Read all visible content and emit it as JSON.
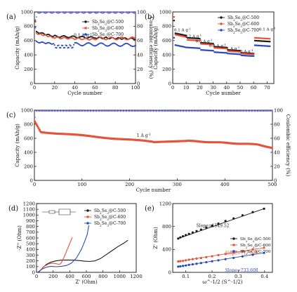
{
  "charts": [
    {
      "panel": "(a)",
      "type": "scatter",
      "xlabel": "Cycle number",
      "ylabel": "Capacity (mAh/g)",
      "y2label": "Coulombic efficiency (%)",
      "xlim": [
        0,
        100
      ],
      "ylim": [
        0,
        1000
      ],
      "y2lim": [
        0,
        100
      ],
      "xticks": [
        0,
        20,
        40,
        60,
        80,
        100
      ],
      "yticks": [
        0,
        200,
        400,
        600,
        800,
        1000
      ],
      "y2ticks": [
        0,
        20,
        40,
        60,
        80,
        100
      ],
      "legend": [
        "Sb2Se3@C-500",
        "Sb2Se3@C-600",
        "Sb2Se3@C-700"
      ],
      "legend_position": "top-right",
      "annotations": [
        {
          "text": "0.1 A g-1",
          "x": 39,
          "y": 650
        }
      ]
    },
    {
      "panel": "(b)",
      "type": "scatter",
      "xlabel": "Cycle number",
      "ylabel": "Capacity (mAh/g)",
      "xlim": [
        0,
        75
      ],
      "ylim": [
        0,
        1000
      ],
      "xticks": [
        0,
        10,
        20,
        30,
        40,
        50,
        60,
        70
      ],
      "yticks": [
        0,
        200,
        400,
        600,
        800,
        1000
      ],
      "legend": [
        "Sb2Se3@C-500",
        "Sb2Se3@C-600",
        "Sb2Se3@C-700"
      ],
      "legend_position": "top-right",
      "annotations": [
        {
          "text": "0.1 A g-1",
          "x": 1,
          "y": 730
        },
        {
          "text": "0.2 A g-1",
          "x": 9,
          "y": 640
        },
        {
          "text": "0.5 A g-1",
          "x": 17,
          "y": 575
        },
        {
          "text": "0.8 A g-1",
          "x": 27,
          "y": 510
        },
        {
          "text": "1 A g-1",
          "x": 40,
          "y": 470
        },
        {
          "text": "2 A g-1",
          "x": 50,
          "y": 430
        },
        {
          "text": "0.1 A g-1",
          "x": 64,
          "y": 740
        }
      ]
    },
    {
      "panel": "(c)",
      "type": "scatter",
      "xlabel": "Cycle number",
      "ylabel": "Capacity (mAh/g)",
      "y2label": "Coulombic efficiency (%)",
      "xlim": [
        0,
        500
      ],
      "ylim": [
        0,
        1000
      ],
      "y2lim": [
        0,
        100
      ],
      "xticks": [
        0,
        100,
        200,
        300,
        400,
        500
      ],
      "yticks": [
        0,
        200,
        400,
        600,
        800,
        1000
      ],
      "y2ticks": [
        0,
        20,
        40,
        60,
        80,
        100
      ],
      "annotations": [
        {
          "text": "1 A g-1",
          "x": 215,
          "y": 620
        }
      ]
    },
    {
      "panel": "(d)",
      "type": "line",
      "xlabel": "Z' (Ohm)",
      "ylabel": "-Z'' (Ohm)",
      "xlim": [
        0,
        1200
      ],
      "ylim": [
        0,
        1200
      ],
      "xticks": [
        0,
        200,
        400,
        600,
        800,
        1000,
        1200
      ],
      "yticks": [
        0,
        100,
        200,
        300,
        400,
        500,
        600,
        700,
        800,
        900,
        1000,
        1100,
        1200
      ],
      "legend": [
        "Sb2Se3@C-500",
        "Sb2Se3@C-600",
        "Sb2Se3@C-700"
      ],
      "legend_position": "top-right",
      "series": [
        {
          "color": "#1a1a1a",
          "x": [
            30,
            50,
            80,
            120,
            170,
            230,
            300,
            380,
            460,
            520,
            580,
            640,
            700,
            770,
            840,
            910,
            980,
            1050,
            1100
          ],
          "y": [
            10,
            40,
            90,
            140,
            175,
            200,
            213,
            215,
            212,
            205,
            195,
            190,
            200,
            240,
            310,
            380,
            450,
            510,
            560
          ]
        },
        {
          "color": "#e5533a",
          "x": [
            30,
            60,
            100,
            150,
            200,
            240,
            270,
            290,
            310,
            330,
            350,
            370,
            390,
            410,
            430
          ],
          "y": [
            10,
            60,
            110,
            150,
            160,
            150,
            140,
            150,
            200,
            260,
            330,
            400,
            470,
            540,
            610
          ]
        },
        {
          "color": "#2b49b8",
          "x": [
            20,
            40,
            70,
            110,
            150,
            180,
            210,
            240,
            300,
            360,
            420,
            480,
            540,
            580,
            610,
            630
          ],
          "y": [
            5,
            30,
            60,
            85,
            100,
            105,
            100,
            98,
            105,
            120,
            160,
            250,
            400,
            540,
            660,
            820
          ]
        }
      ]
    },
    {
      "panel": "(e)",
      "type": "scatter",
      "xlabel": "ω^-1/2 (S^-1/2)",
      "ylabel": "Z' (Ohm)",
      "xlim": [
        0.05,
        0.43
      ],
      "ylim": [
        0,
        1200
      ],
      "xticks": [
        0.1,
        0.2,
        0.3,
        0.4
      ],
      "yticks": [
        0,
        400,
        800,
        1200
      ],
      "legend": [
        "Sb2Se3@C-500",
        "Sb2Se3@C-600",
        "Sb2Se3@C-700"
      ],
      "legend_position": "right",
      "annotations": [
        {
          "text": "Slope=1549.52",
          "x": 0.14,
          "y": 790,
          "color": "#1a1a1a"
        },
        {
          "text": "Slope=717.051",
          "x": 0.25,
          "y": 315,
          "color": "#e5533a"
        },
        {
          "text": "Slope=733.608",
          "x": 0.25,
          "y": 10,
          "color": "#2b49b8"
        }
      ],
      "series": [
        {
          "slope": 1549.52,
          "x": [
            0.071,
            0.079,
            0.089,
            0.1,
            0.112,
            0.126,
            0.141,
            0.158,
            0.178,
            0.2,
            0.224,
            0.251,
            0.282,
            0.316,
            0.355,
            0.398
          ],
          "y": [
            590,
            610,
            630,
            650,
            670,
            695,
            720,
            745,
            780,
            815,
            850,
            895,
            940,
            995,
            1050,
            1110
          ]
        },
        {
          "slope": 717.051,
          "x": [
            0.071,
            0.079,
            0.089,
            0.1,
            0.112,
            0.126,
            0.141,
            0.158,
            0.178,
            0.2,
            0.224,
            0.251,
            0.282,
            0.316,
            0.355,
            0.398
          ],
          "y": [
            190,
            195,
            200,
            210,
            220,
            230,
            240,
            250,
            265,
            280,
            300,
            320,
            345,
            370,
            400,
            430
          ]
        },
        {
          "slope": 733.608,
          "x": [
            0.071,
            0.079,
            0.089,
            0.1,
            0.112,
            0.126,
            0.141,
            0.158,
            0.178,
            0.2,
            0.224,
            0.251,
            0.282,
            0.316,
            0.355,
            0.398
          ],
          "y": [
            100,
            105,
            112,
            120,
            130,
            140,
            150,
            162,
            177,
            193,
            210,
            230,
            252,
            278,
            306,
            340
          ]
        }
      ]
    }
  ],
  "colors": {
    "s500": "#1a1a1a",
    "s600": "#e5533a",
    "s700": "#2b49b8",
    "ce": "#6a6adf"
  }
}
